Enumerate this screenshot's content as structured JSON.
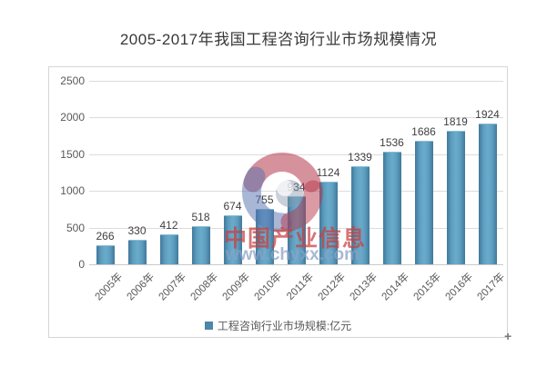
{
  "page": {
    "title": "2005-2017年我国工程咨询行业市场规模情况"
  },
  "chart_data": {
    "type": "bar",
    "title": "2005-2017年我国工程咨询行业市场规模情况",
    "categories": [
      "2005年",
      "2006年",
      "2007年",
      "2008年",
      "2009年",
      "2010年",
      "2011年",
      "2012年",
      "2013年",
      "2014年",
      "2015年",
      "2016年",
      "2017年"
    ],
    "values": [
      266,
      330,
      412,
      518,
      674,
      755,
      934,
      1124,
      1339,
      1536,
      1686,
      1819,
      1924
    ],
    "series_name": "工程咨询行业市场规模:亿元",
    "xlabel": "",
    "ylabel": "",
    "ylim": [
      0,
      2500
    ],
    "yticks": [
      0,
      500,
      1000,
      1500,
      2000,
      2500
    ],
    "grid": true,
    "data_labels": true,
    "legend_position": "bottom",
    "bar_color": "#5C9DBF",
    "bar_color_light": "#6CABCA",
    "bar_edge_color": "#41789A"
  },
  "legend": {
    "label": "工程咨询行业市场规模:亿元",
    "marker_color": "#4E87A8"
  },
  "watermark": {
    "brand": "中国产业信息",
    "url": "www.chyxx.com"
  },
  "icons": {
    "resize_handle": "+"
  }
}
